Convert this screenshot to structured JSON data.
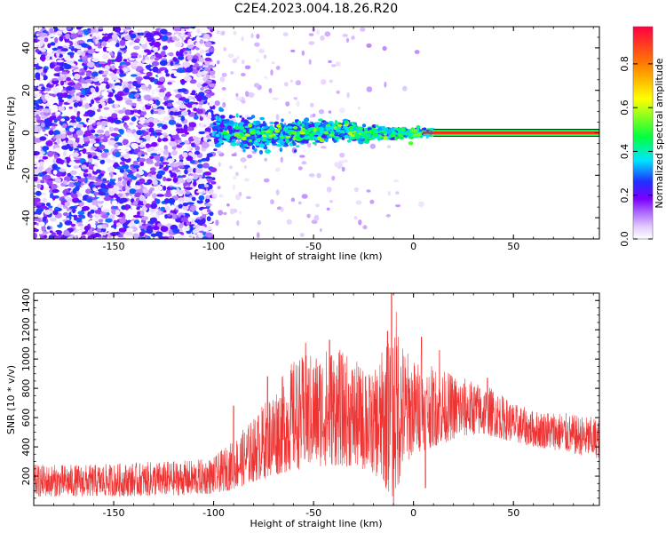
{
  "title": "C2E4.2023.004.18.26.R20",
  "chart_data": [
    {
      "type": "heatmap",
      "xlabel": "Height of straight line (km)",
      "ylabel": "Frequency (Hz)",
      "xlim": [
        -190,
        93
      ],
      "ylim": [
        -50,
        50
      ],
      "xticks": [
        -150,
        -100,
        -50,
        0,
        50
      ],
      "yticks": [
        -40,
        -20,
        0,
        20,
        40
      ],
      "colorbar": {
        "label": "Normalized spectral amplitude",
        "range": [
          0,
          0.97
        ],
        "ticks": [
          0.0,
          0.2,
          0.4,
          0.6,
          0.8
        ],
        "colors": [
          "#ffffff",
          "#e0c8ff",
          "#b070ff",
          "#7a00ff",
          "#2030ff",
          "#00e5ff",
          "#00ff40",
          "#ffff00",
          "#ff8000",
          "#ff0040"
        ]
      },
      "features": {
        "noise_region_x": [
          -190,
          -100
        ],
        "noise_amplitude": 0.3,
        "sparse_region_x": [
          -100,
          10
        ],
        "signal_band_x": [
          -100,
          93
        ],
        "signal_center_freq": 0,
        "signal_band_halfwidth_hz": [
          6,
          0.5
        ],
        "steady_line_start_x": 10,
        "steady_line_amplitude": 0.95
      }
    },
    {
      "type": "line",
      "xlabel": "Height of straight line (km)",
      "ylabel": "SNR (10 * v/v)",
      "xlim": [
        -190,
        93
      ],
      "ylim": [
        0,
        1450
      ],
      "xticks": [
        -150,
        -100,
        -50,
        0,
        50
      ],
      "yticks": [
        200,
        400,
        600,
        800,
        1000,
        1200,
        1400
      ],
      "grid": false,
      "series": [
        {
          "color": "#ee3333",
          "envelope_x": [
            -190,
            -160,
            -130,
            -110,
            -100,
            -90,
            -80,
            -70,
            -60,
            -50,
            -40,
            -30,
            -20,
            -12,
            -10,
            -5,
            0,
            10,
            20,
            30,
            40,
            50,
            60,
            70,
            80,
            93
          ],
          "envelope_low": [
            60,
            60,
            65,
            70,
            80,
            110,
            160,
            200,
            240,
            260,
            270,
            260,
            220,
            80,
            10,
            250,
            350,
            400,
            450,
            480,
            470,
            430,
            400,
            380,
            350,
            320
          ],
          "envelope_high": [
            280,
            280,
            300,
            310,
            330,
            450,
            600,
            800,
            1000,
            1050,
            1100,
            1000,
            900,
            1200,
            1450,
            1100,
            1000,
            950,
            900,
            850,
            800,
            700,
            650,
            650,
            620,
            600
          ],
          "peaks": [
            [
              -90,
              680
            ],
            [
              -73,
              880
            ],
            [
              -54,
              1110
            ],
            [
              -42,
              1130
            ],
            [
              -36,
              1020
            ],
            [
              -24,
              880
            ],
            [
              -13,
              1190
            ],
            [
              -11,
              1450
            ],
            [
              4,
              1150
            ],
            [
              13,
              1060
            ],
            [
              37,
              870
            ]
          ],
          "dips": [
            [
              -10,
              10
            ],
            [
              6,
              120
            ]
          ]
        }
      ]
    }
  ]
}
